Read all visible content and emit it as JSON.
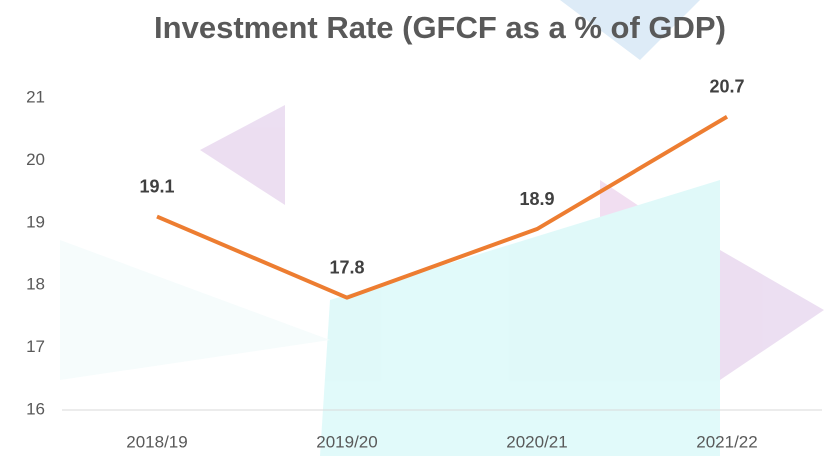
{
  "chart_data": {
    "type": "line",
    "title": "Investment Rate (GFCF as a % of GDP)",
    "categories": [
      "2018/19",
      "2019/20",
      "2020/21",
      "2021/22"
    ],
    "values": [
      19.1,
      17.8,
      18.9,
      20.7
    ],
    "color": "#ed7d31",
    "ylim": [
      16,
      21
    ],
    "yticks": [
      16,
      17,
      18,
      19,
      20,
      21
    ],
    "grid": false
  }
}
